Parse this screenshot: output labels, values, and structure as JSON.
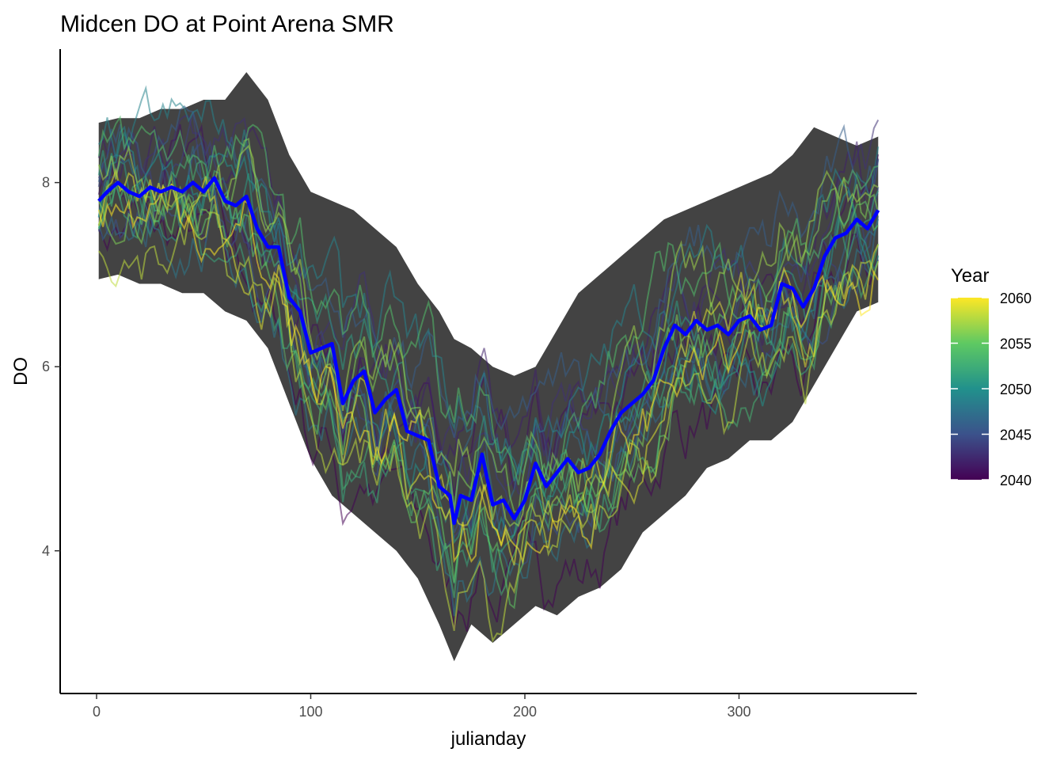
{
  "chart_data": {
    "type": "line",
    "title": "Midcen DO at Point Arena SMR",
    "xlabel": "julianday",
    "ylabel": "DO",
    "xlim": [
      -17,
      383
    ],
    "ylim": [
      2.45,
      9.45
    ],
    "x_ticks": [
      0,
      100,
      200,
      300
    ],
    "y_ticks": [
      4,
      6,
      8
    ],
    "grid": false,
    "legend": {
      "title": "Year",
      "position": "right",
      "type": "colorbar",
      "range": [
        2040,
        2060
      ],
      "breaks": [
        2040,
        2045,
        2050,
        2055,
        2060
      ],
      "palette": [
        "#440154",
        "#3b528b",
        "#21918c",
        "#5ec962",
        "#fde725"
      ]
    },
    "series_colors": {
      "band": "#333333",
      "mean": "#0000ff"
    },
    "band": {
      "x": [
        1,
        10,
        20,
        30,
        40,
        50,
        60,
        70,
        80,
        90,
        100,
        110,
        120,
        130,
        140,
        150,
        160,
        167,
        175,
        185,
        195,
        205,
        215,
        225,
        235,
        245,
        255,
        265,
        275,
        285,
        295,
        305,
        315,
        325,
        335,
        345,
        355,
        365
      ],
      "upper": [
        8.65,
        8.7,
        8.7,
        8.8,
        8.8,
        8.9,
        8.9,
        9.2,
        8.9,
        8.3,
        7.9,
        7.8,
        7.7,
        7.5,
        7.3,
        6.9,
        6.6,
        6.3,
        6.2,
        6.0,
        5.9,
        6.0,
        6.4,
        6.8,
        7.0,
        7.2,
        7.4,
        7.6,
        7.7,
        7.8,
        7.9,
        8.0,
        8.1,
        8.3,
        8.6,
        8.5,
        8.4,
        8.5
      ],
      "lower": [
        6.95,
        7.0,
        6.9,
        6.9,
        6.8,
        6.8,
        6.6,
        6.5,
        6.2,
        5.6,
        5.0,
        4.6,
        4.4,
        4.2,
        4.0,
        3.7,
        3.2,
        2.8,
        3.2,
        3.0,
        3.2,
        3.4,
        3.3,
        3.5,
        3.6,
        3.8,
        4.2,
        4.4,
        4.6,
        4.9,
        5.0,
        5.2,
        5.2,
        5.4,
        5.8,
        6.2,
        6.6,
        6.7
      ]
    },
    "mean": {
      "x": [
        1,
        5,
        10,
        15,
        20,
        25,
        30,
        35,
        40,
        45,
        50,
        55,
        60,
        65,
        70,
        75,
        80,
        85,
        90,
        95,
        100,
        105,
        110,
        115,
        120,
        125,
        130,
        135,
        140,
        145,
        150,
        155,
        160,
        165,
        167,
        170,
        175,
        180,
        185,
        190,
        195,
        200,
        205,
        210,
        215,
        220,
        225,
        230,
        235,
        240,
        245,
        250,
        255,
        260,
        265,
        270,
        275,
        280,
        285,
        290,
        295,
        300,
        305,
        310,
        315,
        320,
        325,
        330,
        335,
        340,
        345,
        350,
        355,
        360,
        365
      ],
      "y": [
        7.8,
        7.9,
        8.0,
        7.9,
        7.85,
        7.95,
        7.9,
        7.95,
        7.9,
        8.0,
        7.9,
        8.05,
        7.8,
        7.75,
        7.85,
        7.5,
        7.3,
        7.3,
        6.75,
        6.6,
        6.15,
        6.2,
        6.25,
        5.6,
        5.85,
        5.95,
        5.5,
        5.65,
        5.75,
        5.3,
        5.25,
        5.2,
        4.7,
        4.6,
        4.3,
        4.6,
        4.55,
        5.05,
        4.5,
        4.55,
        4.35,
        4.55,
        4.95,
        4.7,
        4.85,
        5.0,
        4.85,
        4.9,
        5.05,
        5.3,
        5.5,
        5.6,
        5.7,
        5.85,
        6.2,
        6.45,
        6.35,
        6.5,
        6.4,
        6.45,
        6.35,
        6.5,
        6.55,
        6.4,
        6.45,
        6.9,
        6.85,
        6.65,
        6.85,
        7.2,
        7.4,
        7.45,
        7.6,
        7.5,
        7.7
      ]
    },
    "years": {
      "count": 21,
      "first": 2040,
      "last": 2060,
      "x_range": [
        1,
        365
      ]
    }
  }
}
